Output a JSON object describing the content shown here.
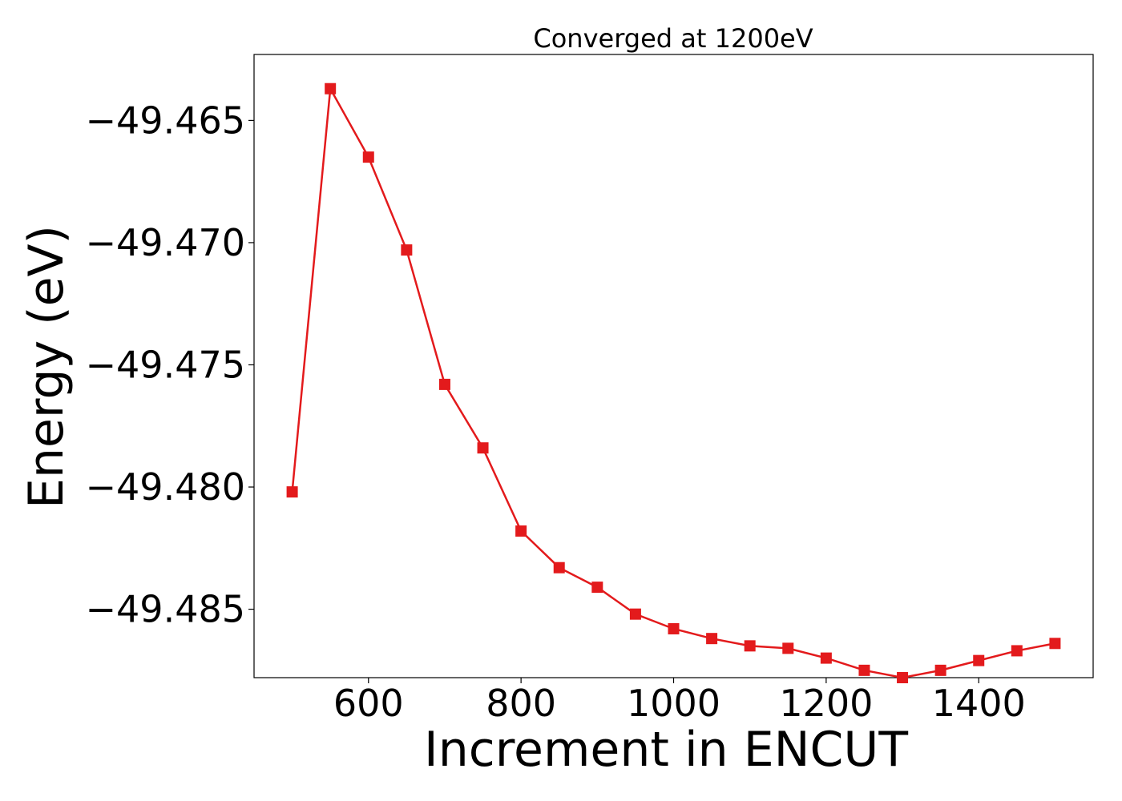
{
  "chart_data": {
    "type": "line",
    "title": "Converged at 1200eV",
    "xlabel": "Increment in ENCUT",
    "ylabel": "Energy (eV)",
    "xlim": [
      450,
      1550
    ],
    "ylim": [
      -49.4878,
      -49.4623
    ],
    "xticks": [
      600,
      800,
      1000,
      1200,
      1400
    ],
    "xtick_labels": [
      "600",
      "800",
      "1000",
      "1200",
      "1400"
    ],
    "yticks": [
      -49.465,
      -49.47,
      -49.475,
      -49.48,
      -49.485
    ],
    "ytick_labels": [
      "−49.465",
      "−49.470",
      "−49.475",
      "−49.480",
      "−49.485"
    ],
    "grid": false,
    "series": [
      {
        "color": "#e31a1c",
        "marker": "square",
        "x": [
          500,
          550,
          600,
          650,
          700,
          750,
          800,
          850,
          900,
          950,
          1000,
          1050,
          1100,
          1150,
          1200,
          1250,
          1300,
          1350,
          1400,
          1450,
          1500
        ],
        "y": [
          -49.4802,
          -49.4637,
          -49.4665,
          -49.4703,
          -49.4758,
          -49.4784,
          -49.4818,
          -49.4833,
          -49.4841,
          -49.4852,
          -49.4858,
          -49.4862,
          -49.4865,
          -49.4866,
          -49.487,
          -49.4875,
          -49.4878,
          -49.4875,
          -49.4871,
          -49.4867,
          -49.4864
        ]
      }
    ]
  }
}
